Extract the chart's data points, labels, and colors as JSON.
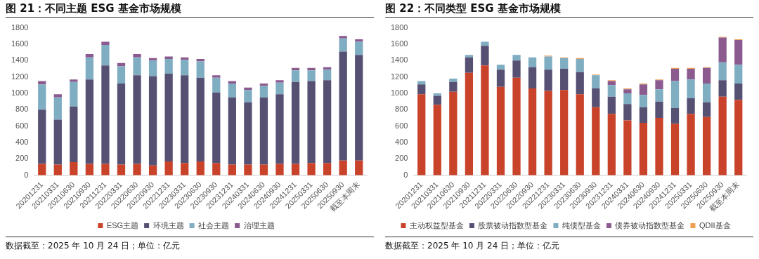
{
  "chart_data": [
    {
      "type": "bar",
      "title": "图 21：不同主题 ESG 基金市场规模",
      "stacked": true,
      "legend": "bottom",
      "grid": false,
      "categories": [
        "20201231",
        "20210331",
        "20210630",
        "20210930",
        "20211231",
        "20220331",
        "20220630",
        "20220930",
        "20221231",
        "20230331",
        "20230630",
        "20230930",
        "20231231",
        "20240331",
        "20240630",
        "20240930",
        "20241231",
        "20250331",
        "20250630",
        "20250930",
        "截至本周末"
      ],
      "ylim": [
        0,
        1800
      ],
      "yticks": [
        0,
        200,
        400,
        600,
        800,
        1000,
        1200,
        1400,
        1600,
        1800
      ],
      "series": [
        {
          "name": "ESG主题",
          "color": "#c9432a",
          "values": [
            140,
            130,
            160,
            140,
            140,
            130,
            140,
            120,
            170,
            150,
            170,
            150,
            130,
            130,
            130,
            140,
            140,
            150,
            150,
            180,
            180
          ]
        },
        {
          "name": "环境主题",
          "color": "#565073",
          "values": [
            660,
            550,
            680,
            1030,
            1200,
            990,
            1080,
            1090,
            1070,
            1070,
            1020,
            860,
            820,
            760,
            820,
            850,
            1000,
            1000,
            1010,
            1330,
            1290
          ]
        },
        {
          "name": "社会主题",
          "color": "#7fadc2",
          "values": [
            310,
            270,
            300,
            270,
            250,
            210,
            220,
            190,
            180,
            190,
            200,
            180,
            170,
            150,
            140,
            140,
            140,
            130,
            130,
            160,
            160
          ]
        },
        {
          "name": "治理主题",
          "color": "#8b5a8f",
          "values": [
            40,
            40,
            30,
            40,
            40,
            40,
            40,
            30,
            30,
            30,
            30,
            30,
            30,
            30,
            30,
            30,
            30,
            30,
            30,
            30,
            30
          ]
        }
      ],
      "annotations": [
        "数据截至：2025 年 10 月 24 日；单位：亿元"
      ]
    },
    {
      "type": "bar",
      "title": "图 22：不同类型 ESG 基金市场规模",
      "stacked": true,
      "legend": "bottom",
      "grid": false,
      "categories": [
        "20201231",
        "20210331",
        "20210630",
        "20210930",
        "20211231",
        "20220331",
        "20220630",
        "20220930",
        "20221231",
        "20230331",
        "20230630",
        "20230930",
        "20231231",
        "20240331",
        "20240630",
        "20240930",
        "20241231",
        "20250331",
        "20250630",
        "20250930",
        "截至本周末"
      ],
      "ylim": [
        0,
        1800
      ],
      "yticks": [
        0,
        200,
        400,
        600,
        800,
        1000,
        1200,
        1400,
        1600,
        1800
      ],
      "series": [
        {
          "name": "主动权益型基金",
          "color": "#c9432a",
          "values": [
            990,
            860,
            1020,
            1250,
            1340,
            1080,
            1190,
            1060,
            1030,
            1040,
            990,
            830,
            750,
            670,
            640,
            700,
            630,
            750,
            710,
            960,
            920
          ]
        },
        {
          "name": "股票被动指数型基金",
          "color": "#565073",
          "values": [
            120,
            110,
            120,
            190,
            240,
            210,
            210,
            260,
            260,
            260,
            270,
            230,
            210,
            200,
            190,
            200,
            190,
            190,
            180,
            200,
            200
          ]
        },
        {
          "name": "纯债型基金",
          "color": "#7fadc2",
          "values": [
            40,
            30,
            40,
            30,
            50,
            60,
            70,
            120,
            160,
            130,
            160,
            160,
            140,
            130,
            150,
            150,
            330,
            230,
            230,
            220,
            230
          ]
        },
        {
          "name": "债券被动指数型基金",
          "color": "#8b5a8f",
          "values": [
            0,
            0,
            0,
            0,
            0,
            0,
            0,
            0,
            0,
            0,
            0,
            0,
            50,
            50,
            130,
            110,
            150,
            130,
            190,
            300,
            300
          ]
        },
        {
          "name": "QDII基金",
          "color": "#f0a050",
          "values": [
            0,
            0,
            0,
            0,
            0,
            0,
            0,
            0,
            10,
            10,
            10,
            10,
            10,
            10,
            10,
            10,
            10,
            10,
            10,
            10,
            10
          ]
        }
      ],
      "annotations": [
        "数据截至：2025 年 10 月 24 日；单位：亿元"
      ]
    }
  ]
}
